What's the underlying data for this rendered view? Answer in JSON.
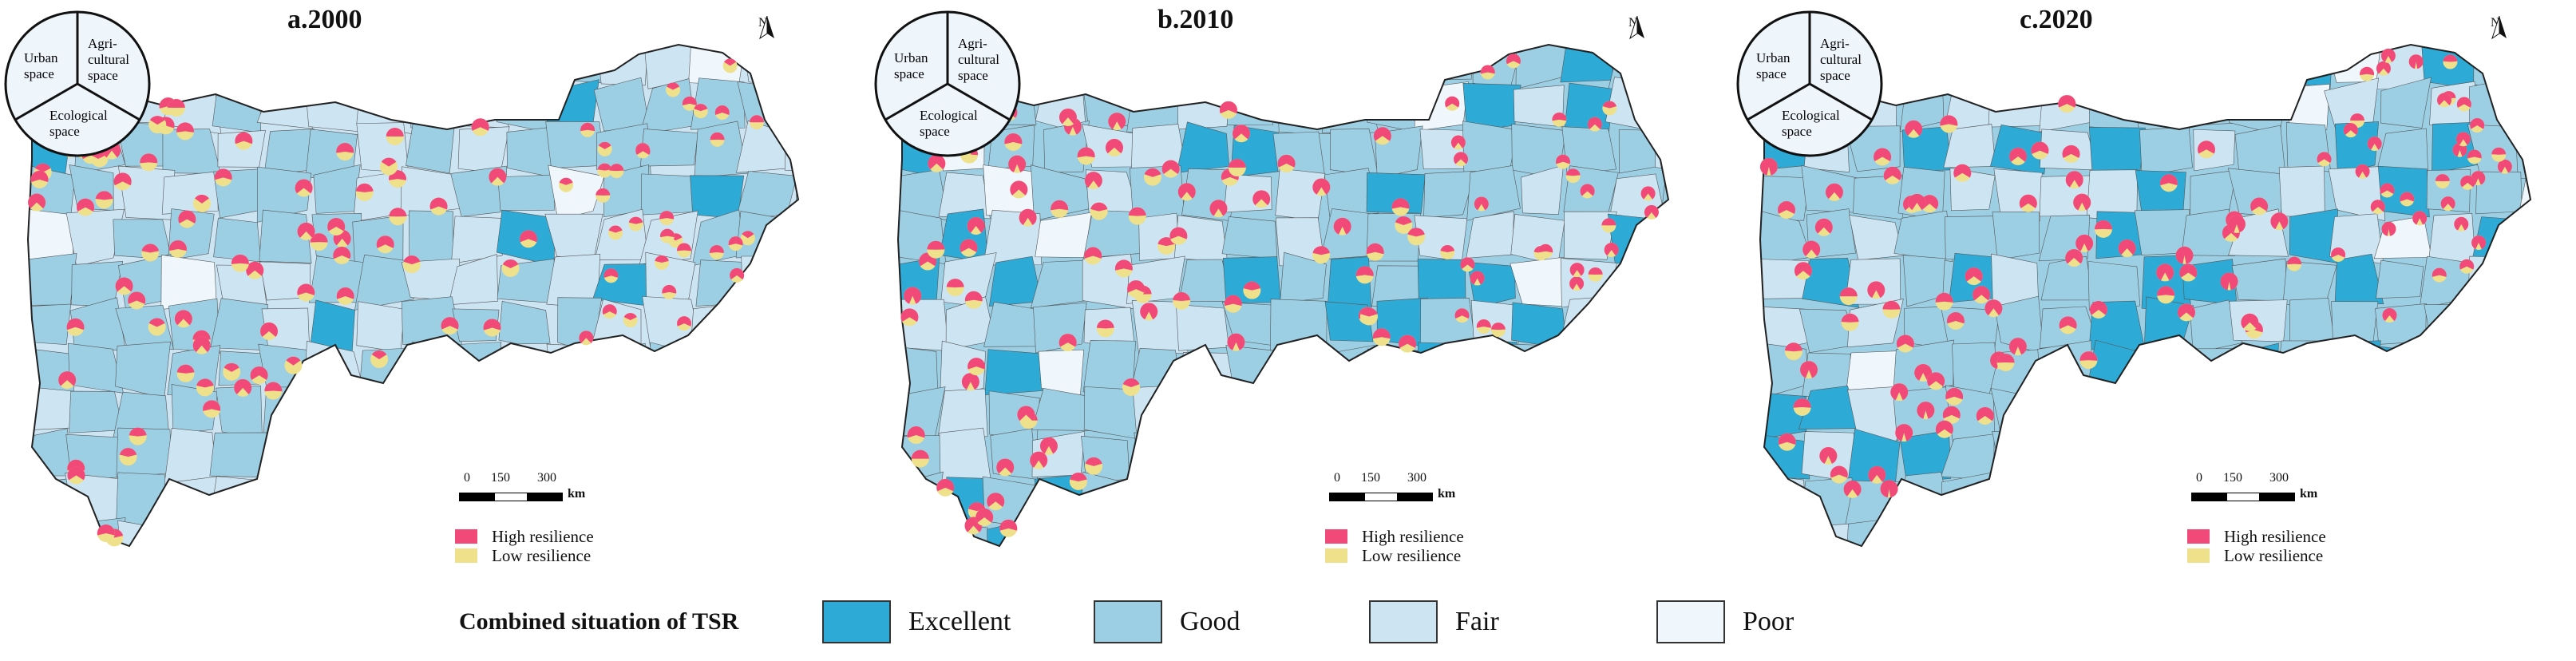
{
  "panels": [
    {
      "title": "a.2000",
      "north": "N"
    },
    {
      "title": "b.2010",
      "north": "N"
    },
    {
      "title": "c.2020",
      "north": "N"
    }
  ],
  "scale_bar": {
    "ticks": [
      "0",
      "150",
      "300"
    ],
    "unit": "km"
  },
  "pie_legend": {
    "segments": [
      "Urban space",
      "Agri-cultural space",
      "Ecological space"
    ]
  },
  "resilience_legend": [
    {
      "label": "High resilience",
      "color": "#f24a78"
    },
    {
      "label": "Low resilience",
      "color": "#efe08c"
    }
  ],
  "tsr_legend": {
    "title": "Combined situation of TSR",
    "classes": [
      {
        "label": "Excellent",
        "color": "#2eaad6"
      },
      {
        "label": "Good",
        "color": "#9ccfe4"
      },
      {
        "label": "Fair",
        "color": "#cde4f3"
      },
      {
        "label": "Poor",
        "color": "#eff7fc"
      }
    ]
  }
}
